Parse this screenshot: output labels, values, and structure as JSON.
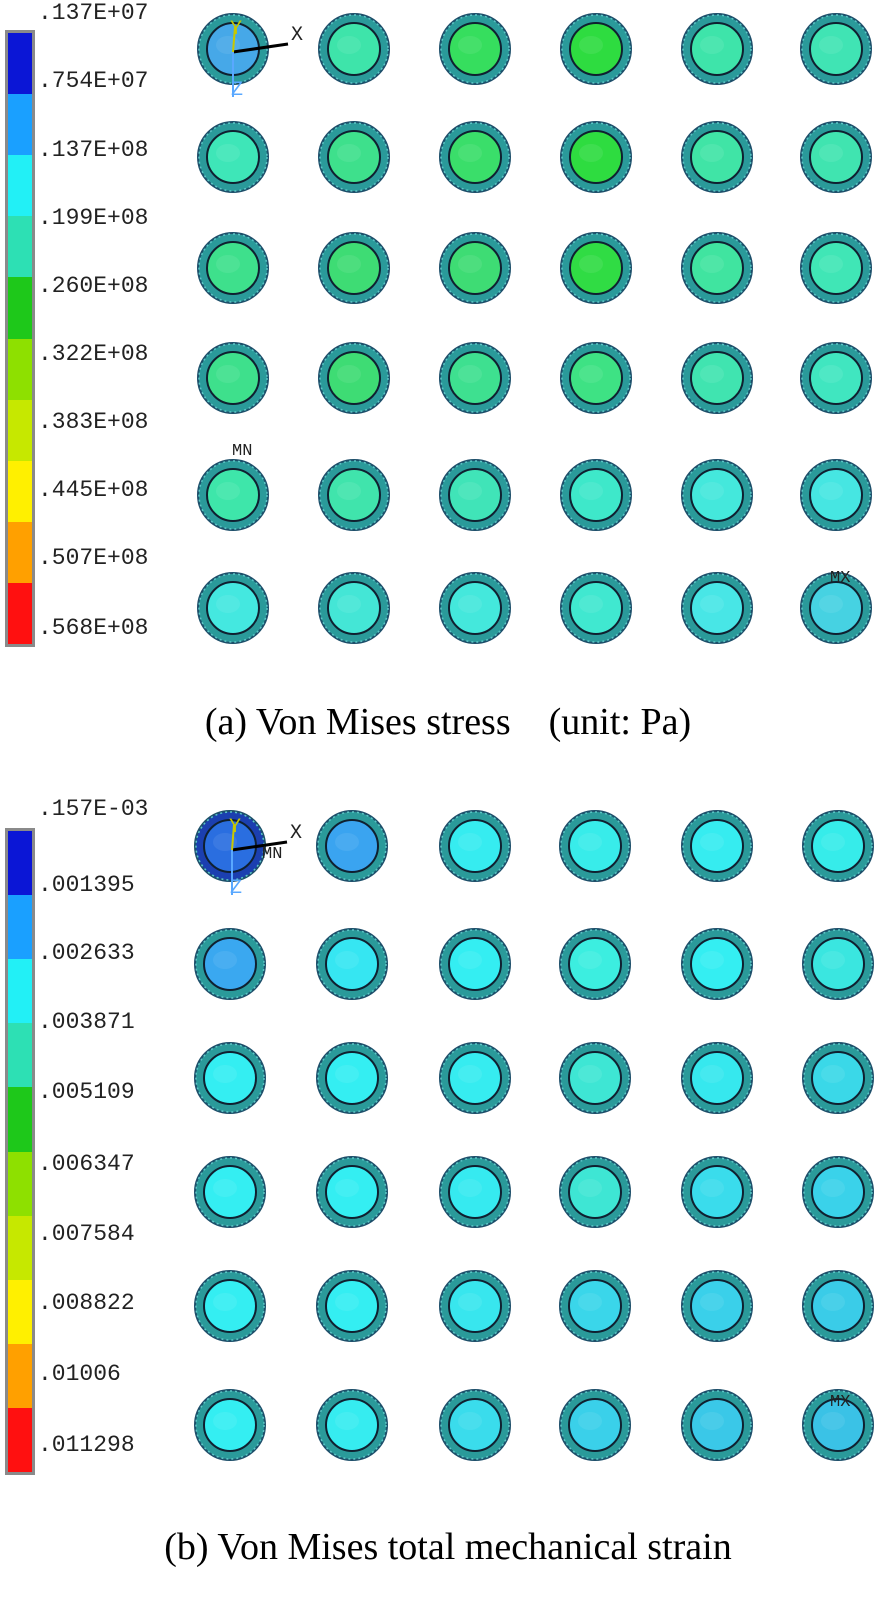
{
  "panels": [
    {
      "id": "a",
      "caption": "(a) Von Mises stress    (unit: Pa)",
      "legend": {
        "labels": [
          ".137E+07",
          ".754E+07",
          ".137E+08",
          ".199E+08",
          ".260E+08",
          ".322E+08",
          ".383E+08",
          ".445E+08",
          ".507E+08",
          ".568E+08"
        ],
        "colors": [
          "#0b16d6",
          "#1aa0ff",
          "#22f0f6",
          "#2de0b4",
          "#1ec81a",
          "#8ee000",
          "#c6e800",
          "#fff000",
          "#ffa000",
          "#ff1010"
        ]
      },
      "triad": {
        "x": "X",
        "y": "Y",
        "z": "Z"
      },
      "min_marker": "MN",
      "max_marker": "MX",
      "fill_grid": [
        [
          "#46a8e8",
          "#3ee4aa",
          "#36de5e",
          "#2edc40",
          "#3ee4aa",
          "#40e4b4"
        ],
        [
          "#3ee6b8",
          "#3ee08c",
          "#3ade6a",
          "#2edc40",
          "#40e4a6",
          "#40e4b0"
        ],
        [
          "#3ee08c",
          "#3edc74",
          "#3edc74",
          "#30dc44",
          "#40e4a0",
          "#40e6b6"
        ],
        [
          "#3ee08c",
          "#3edc74",
          "#3ee090",
          "#3ee284",
          "#40e4b0",
          "#40e6c0"
        ],
        [
          "#3ee6aa",
          "#40e4ac",
          "#40e4b8",
          "#3ee8ca",
          "#44e8dc",
          "#46e6e2"
        ],
        [
          "#44e8e0",
          "#44e6d6",
          "#44e8dc",
          "#40e8d0",
          "#48e6e6",
          "#46d2e2"
        ]
      ]
    },
    {
      "id": "b",
      "caption": "(b) Von Mises total mechanical strain",
      "legend": {
        "labels": [
          ".157E-03",
          ".001395",
          ".002633",
          ".003871",
          ".005109",
          ".006347",
          ".007584",
          ".008822",
          ".01006",
          ".011298"
        ],
        "colors": [
          "#0b16d6",
          "#1aa0ff",
          "#22f0f6",
          "#2de0b4",
          "#1ec81a",
          "#8ee000",
          "#c6e800",
          "#fff000",
          "#ffa000",
          "#ff1010"
        ]
      },
      "triad": {
        "x": "X",
        "y": "Y",
        "z": "Z"
      },
      "min_marker": "MN",
      "max_marker": "MX",
      "fill_grid": [
        [
          "#2a6ee0",
          "#3aa4f0",
          "#36ecf0",
          "#38ecea",
          "#36ecf0",
          "#36ecea"
        ],
        [
          "#3aa8f0",
          "#36e6f2",
          "#34eef2",
          "#3ceee0",
          "#34eef2",
          "#3ae6e0"
        ],
        [
          "#34eef2",
          "#34eef2",
          "#36ecf0",
          "#3ee6d4",
          "#36e8ee",
          "#3ad8e8"
        ],
        [
          "#34eef2",
          "#34eef2",
          "#36eaf0",
          "#3ee6d4",
          "#3adcec",
          "#3ad2ea"
        ],
        [
          "#34eef2",
          "#34eef2",
          "#38e6ee",
          "#3ad6ea",
          "#3ad0ea",
          "#3acce8"
        ],
        [
          "#34eef2",
          "#36ecf0",
          "#3adcec",
          "#3ad0ea",
          "#3ac8e8",
          "#3ac2e6"
        ]
      ]
    }
  ]
}
